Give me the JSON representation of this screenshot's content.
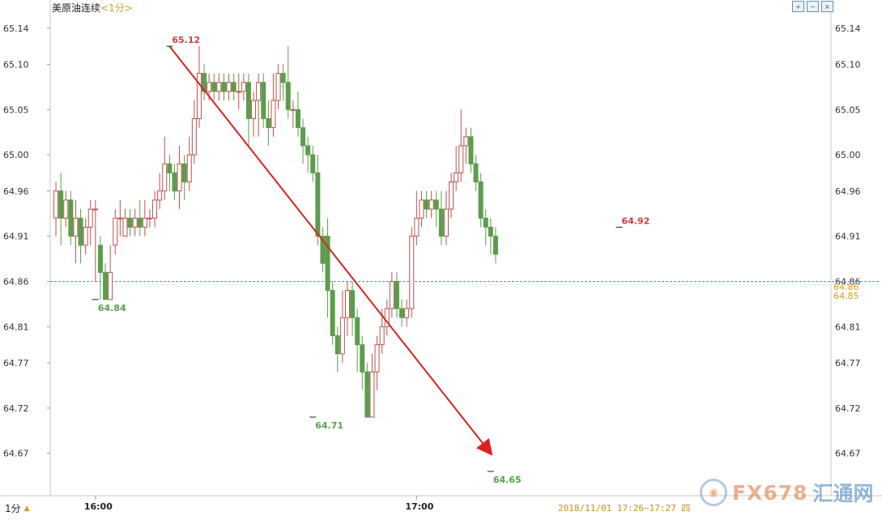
{
  "header": {
    "instrument": "美原油连续",
    "period": "<1分>",
    "toolbar_icons": [
      "zoom-in-icon",
      "zoom-out-icon",
      "close-icon"
    ]
  },
  "footer": {
    "period_selector": "1分",
    "timespan": "2018/11/01 17:26~17:27 四"
  },
  "watermark": {
    "brand": "FX678",
    "brand_cn": "汇通网"
  },
  "current_price_tags": [
    "64.86",
    "64.85"
  ],
  "colors": {
    "up": "#c0504d",
    "down": "#5a9e4b",
    "trend": "#e02020",
    "dashed": "#4a90c8"
  },
  "chart_data": {
    "type": "candlestick",
    "title": "美原油连续",
    "y_ticks": [
      "65.14",
      "65.10",
      "65.05",
      "65.00",
      "64.96",
      "64.91",
      "64.86",
      "64.81",
      "64.77",
      "64.72",
      "64.67"
    ],
    "x_ticks": [
      {
        "label": "16:00",
        "index": 8
      },
      {
        "label": "17:00",
        "index": 73
      }
    ],
    "ylim": [
      64.65,
      65.155
    ],
    "current_price": 64.86,
    "annotations": [
      {
        "label": "65.12",
        "index": 23,
        "value": 65.12,
        "color": "#d04040"
      },
      {
        "label": "64.84",
        "index": 8,
        "value": 64.84,
        "color": "#5a9e4b"
      },
      {
        "label": "64.71",
        "index": 52,
        "value": 64.71,
        "color": "#5a9e4b"
      },
      {
        "label": "64.65",
        "index": 88,
        "value": 64.65,
        "color": "#5a9e4b"
      },
      {
        "label": "64.92",
        "index": 114,
        "value": 64.92,
        "color": "#d04040"
      }
    ],
    "trend_line": {
      "from_index": 23,
      "from_value": 65.12,
      "to_index": 88,
      "to_value": 64.67
    },
    "candles": [
      [
        64.93,
        64.96,
        64.97,
        64.91
      ],
      [
        64.96,
        64.93,
        64.98,
        64.9
      ],
      [
        64.93,
        64.95,
        64.96,
        64.92
      ],
      [
        64.95,
        64.91,
        64.96,
        64.9
      ],
      [
        64.91,
        64.93,
        64.95,
        64.88
      ],
      [
        64.93,
        64.9,
        64.94,
        64.88
      ],
      [
        64.9,
        64.92,
        64.93,
        64.89
      ],
      [
        64.92,
        64.94,
        64.95,
        64.9
      ],
      [
        64.94,
        64.94,
        64.95,
        64.86
      ],
      [
        64.9,
        64.87,
        64.91,
        64.84
      ],
      [
        64.87,
        64.84,
        64.88,
        64.84
      ],
      [
        64.84,
        64.87,
        64.9,
        64.84
      ],
      [
        64.9,
        64.93,
        64.94,
        64.89
      ],
      [
        64.93,
        64.93,
        64.95,
        64.91
      ],
      [
        64.91,
        64.93,
        64.94,
        64.91
      ],
      [
        64.93,
        64.92,
        64.94,
        64.91
      ],
      [
        64.92,
        64.93,
        64.94,
        64.91
      ],
      [
        64.93,
        64.92,
        64.95,
        64.91
      ],
      [
        64.92,
        64.93,
        64.95,
        64.91
      ],
      [
        64.93,
        64.93,
        64.94,
        64.92
      ],
      [
        64.93,
        64.95,
        64.96,
        64.92
      ],
      [
        64.95,
        64.96,
        64.98,
        64.94
      ],
      [
        64.96,
        64.99,
        65.02,
        64.95
      ],
      [
        64.99,
        64.98,
        65.0,
        64.96
      ],
      [
        64.98,
        64.96,
        64.99,
        64.95
      ],
      [
        64.96,
        64.99,
        65.01,
        64.94
      ],
      [
        64.99,
        64.97,
        65.0,
        64.95
      ],
      [
        64.97,
        65.0,
        65.02,
        64.96
      ],
      [
        65.0,
        65.04,
        65.06,
        64.99
      ],
      [
        65.04,
        65.09,
        65.12,
        65.03
      ],
      [
        65.09,
        65.07,
        65.1,
        65.06
      ],
      [
        65.07,
        65.08,
        65.09,
        65.06
      ],
      [
        65.08,
        65.07,
        65.09,
        65.06
      ],
      [
        65.07,
        65.08,
        65.09,
        65.06
      ],
      [
        65.08,
        65.07,
        65.09,
        65.06
      ],
      [
        65.07,
        65.08,
        65.09,
        65.06
      ],
      [
        65.08,
        65.07,
        65.09,
        65.06
      ],
      [
        65.07,
        65.07,
        65.09,
        65.05
      ],
      [
        65.07,
        65.08,
        65.09,
        65.06
      ],
      [
        65.08,
        65.04,
        65.09,
        65.01
      ],
      [
        65.04,
        65.06,
        65.07,
        65.02
      ],
      [
        65.06,
        65.08,
        65.09,
        65.02
      ],
      [
        65.08,
        65.04,
        65.09,
        65.03
      ],
      [
        65.04,
        65.03,
        65.06,
        65.01
      ],
      [
        65.03,
        65.06,
        65.09,
        65.02
      ],
      [
        65.06,
        65.09,
        65.1,
        65.05
      ],
      [
        65.09,
        65.08,
        65.1,
        65.06
      ],
      [
        65.08,
        65.05,
        65.12,
        65.04
      ],
      [
        65.05,
        65.05,
        65.06,
        65.03
      ],
      [
        65.05,
        65.03,
        65.07,
        65.02
      ],
      [
        65.03,
        65.01,
        65.04,
        64.99
      ],
      [
        65.01,
        65.0,
        65.02,
        64.98
      ],
      [
        65.0,
        64.98,
        65.01,
        64.97
      ],
      [
        64.98,
        64.91,
        65.0,
        64.9
      ],
      [
        64.91,
        64.88,
        64.92,
        64.87
      ],
      [
        64.91,
        64.85,
        64.93,
        64.82
      ],
      [
        64.85,
        64.8,
        64.86,
        64.79
      ],
      [
        64.8,
        64.78,
        64.81,
        64.76
      ],
      [
        64.78,
        64.82,
        64.85,
        64.77
      ],
      [
        64.82,
        64.85,
        64.86,
        64.8
      ],
      [
        64.85,
        64.82,
        64.86,
        64.8
      ],
      [
        64.82,
        64.79,
        64.83,
        64.76
      ],
      [
        64.79,
        64.76,
        64.8,
        64.74
      ],
      [
        64.76,
        64.71,
        64.77,
        64.71
      ],
      [
        64.71,
        64.76,
        64.78,
        64.71
      ],
      [
        64.76,
        64.79,
        64.8,
        64.74
      ],
      [
        64.79,
        64.81,
        64.83,
        64.78
      ],
      [
        64.81,
        64.83,
        64.84,
        64.8
      ],
      [
        64.83,
        64.86,
        64.87,
        64.82
      ],
      [
        64.86,
        64.83,
        64.87,
        64.82
      ],
      [
        64.83,
        64.82,
        64.84,
        64.81
      ],
      [
        64.82,
        64.83,
        64.84,
        64.81
      ],
      [
        64.83,
        64.91,
        64.92,
        64.82
      ],
      [
        64.91,
        64.93,
        64.96,
        64.9
      ],
      [
        64.93,
        64.95,
        64.96,
        64.92
      ],
      [
        64.95,
        64.94,
        64.96,
        64.93
      ],
      [
        64.94,
        64.95,
        64.96,
        64.93
      ],
      [
        64.95,
        64.94,
        64.96,
        64.92
      ],
      [
        64.94,
        64.91,
        64.96,
        64.9
      ],
      [
        64.91,
        64.94,
        64.96,
        64.9
      ],
      [
        64.94,
        64.97,
        64.98,
        64.93
      ],
      [
        64.97,
        64.98,
        65.01,
        64.96
      ],
      [
        64.98,
        65.01,
        65.05,
        64.97
      ],
      [
        65.01,
        65.02,
        65.03,
        64.99
      ],
      [
        65.02,
        64.99,
        65.03,
        64.98
      ],
      [
        64.99,
        64.97,
        65.0,
        64.96
      ],
      [
        64.97,
        64.93,
        64.98,
        64.92
      ],
      [
        64.93,
        64.92,
        64.94,
        64.9
      ],
      [
        64.92,
        64.91,
        64.93,
        64.89
      ],
      [
        64.91,
        64.89,
        64.92,
        64.88
      ]
    ]
  }
}
